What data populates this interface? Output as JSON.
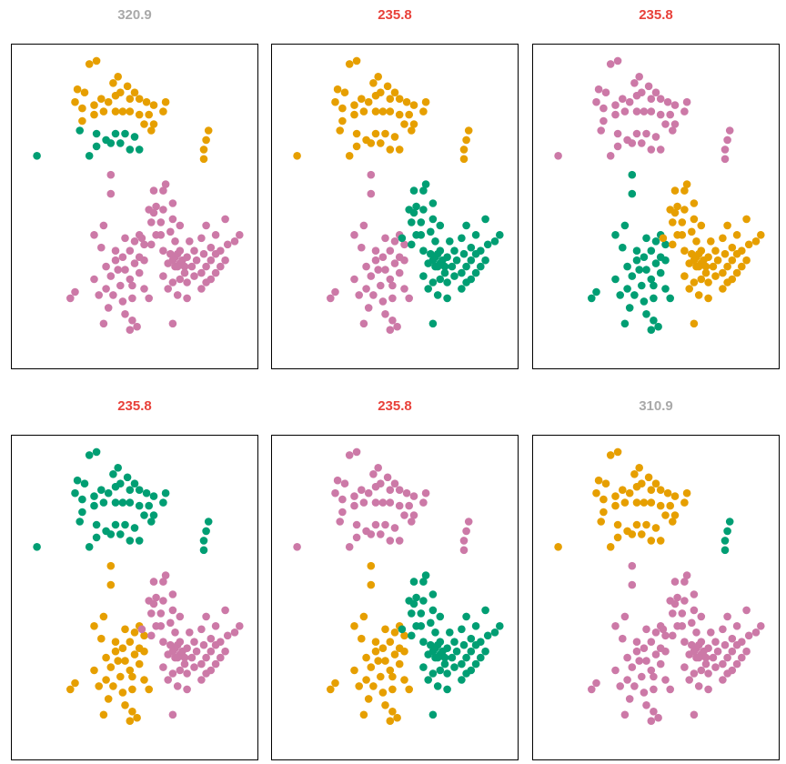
{
  "chart_data": {
    "type": "scatter",
    "colors": {
      "orange": "#E69F00",
      "green": "#009E73",
      "pink": "#CC79A7",
      "title_best": "#E8413A",
      "title_other": "#A9A9A9"
    },
    "xlim": [
      0,
      100
    ],
    "ylim": [
      0,
      100
    ],
    "panels": [
      {
        "title": "320.9",
        "title_color": "title_other",
        "groups": {
          "top_core": "orange",
          "top_lower": "green",
          "top_right": "orange",
          "far_left": "green",
          "left_blob": "pink",
          "right_blob": "pink"
        }
      },
      {
        "title": "235.8",
        "title_color": "title_best",
        "groups": {
          "top_core": "orange",
          "top_lower": "orange",
          "top_right": "orange",
          "far_left": "orange",
          "left_blob": "pink",
          "right_blob": "green"
        }
      },
      {
        "title": "235.8",
        "title_color": "title_best",
        "groups": {
          "top_core": "pink",
          "top_lower": "pink",
          "top_right": "pink",
          "far_left": "pink",
          "left_blob": "green",
          "right_blob": "orange"
        }
      },
      {
        "title": "235.8",
        "title_color": "title_best",
        "groups": {
          "top_core": "green",
          "top_lower": "green",
          "top_right": "green",
          "far_left": "green",
          "left_blob": "orange",
          "right_blob": "pink"
        }
      },
      {
        "title": "235.8",
        "title_color": "title_best",
        "groups": {
          "top_core": "pink",
          "top_lower": "pink",
          "top_right": "pink",
          "far_left": "pink",
          "left_blob": "orange",
          "right_blob": "green"
        }
      },
      {
        "title": "310.9",
        "title_color": "title_other",
        "groups": {
          "top_core": "orange",
          "top_lower": "orange",
          "top_right": "green",
          "far_left": "orange",
          "left_blob": "pink",
          "right_blob": "pink"
        }
      }
    ],
    "points": [
      {
        "g": "top_core",
        "x": 31,
        "y": 95
      },
      {
        "g": "top_core",
        "x": 34,
        "y": 96
      },
      {
        "g": "top_core",
        "x": 26,
        "y": 87
      },
      {
        "g": "top_core",
        "x": 29,
        "y": 86
      },
      {
        "g": "top_core",
        "x": 25,
        "y": 83
      },
      {
        "g": "top_core",
        "x": 28,
        "y": 81
      },
      {
        "g": "top_core",
        "x": 33,
        "y": 82
      },
      {
        "g": "top_core",
        "x": 36,
        "y": 84
      },
      {
        "g": "top_core",
        "x": 39,
        "y": 83
      },
      {
        "g": "top_core",
        "x": 42,
        "y": 85
      },
      {
        "g": "top_core",
        "x": 41,
        "y": 89
      },
      {
        "g": "top_core",
        "x": 43,
        "y": 91
      },
      {
        "g": "top_core",
        "x": 47,
        "y": 88
      },
      {
        "g": "top_core",
        "x": 50,
        "y": 86
      },
      {
        "g": "top_core",
        "x": 52,
        "y": 84
      },
      {
        "g": "top_core",
        "x": 55,
        "y": 83
      },
      {
        "g": "top_core",
        "x": 58,
        "y": 82
      },
      {
        "g": "top_core",
        "x": 63,
        "y": 83
      },
      {
        "g": "top_core",
        "x": 62,
        "y": 80
      },
      {
        "g": "top_core",
        "x": 56,
        "y": 79
      },
      {
        "g": "top_core",
        "x": 52,
        "y": 79
      },
      {
        "g": "top_core",
        "x": 48,
        "y": 80
      },
      {
        "g": "top_core",
        "x": 45,
        "y": 80
      },
      {
        "g": "top_core",
        "x": 42,
        "y": 80
      },
      {
        "g": "top_core",
        "x": 37,
        "y": 80
      },
      {
        "g": "top_core",
        "x": 33,
        "y": 79
      },
      {
        "g": "top_core",
        "x": 28,
        "y": 77
      },
      {
        "g": "top_core",
        "x": 54,
        "y": 76
      },
      {
        "g": "top_core",
        "x": 58,
        "y": 76
      },
      {
        "g": "top_core",
        "x": 57,
        "y": 74
      },
      {
        "g": "top_core",
        "x": 44,
        "y": 86
      },
      {
        "g": "top_core",
        "x": 48,
        "y": 84
      },
      {
        "g": "top_lower",
        "x": 27,
        "y": 74
      },
      {
        "g": "top_lower",
        "x": 34,
        "y": 73
      },
      {
        "g": "top_lower",
        "x": 38,
        "y": 71
      },
      {
        "g": "top_lower",
        "x": 42,
        "y": 73
      },
      {
        "g": "top_lower",
        "x": 46,
        "y": 73
      },
      {
        "g": "top_lower",
        "x": 50,
        "y": 72
      },
      {
        "g": "top_lower",
        "x": 44,
        "y": 70
      },
      {
        "g": "top_lower",
        "x": 34,
        "y": 69
      },
      {
        "g": "top_lower",
        "x": 31,
        "y": 66
      },
      {
        "g": "top_lower",
        "x": 52,
        "y": 68
      },
      {
        "g": "top_lower",
        "x": 40,
        "y": 70
      },
      {
        "g": "top_lower",
        "x": 48,
        "y": 68
      },
      {
        "g": "top_right",
        "x": 81,
        "y": 74
      },
      {
        "g": "top_right",
        "x": 80,
        "y": 71
      },
      {
        "g": "top_right",
        "x": 79,
        "y": 68
      },
      {
        "g": "top_right",
        "x": 79,
        "y": 65
      },
      {
        "g": "far_left",
        "x": 9,
        "y": 66
      },
      {
        "g": "left_blob",
        "x": 40,
        "y": 60
      },
      {
        "g": "left_blob",
        "x": 40,
        "y": 54
      },
      {
        "g": "left_blob",
        "x": 37,
        "y": 44
      },
      {
        "g": "left_blob",
        "x": 33,
        "y": 41
      },
      {
        "g": "left_blob",
        "x": 36,
        "y": 37
      },
      {
        "g": "left_blob",
        "x": 42,
        "y": 36
      },
      {
        "g": "left_blob",
        "x": 46,
        "y": 40
      },
      {
        "g": "left_blob",
        "x": 50,
        "y": 39
      },
      {
        "g": "left_blob",
        "x": 52,
        "y": 41
      },
      {
        "g": "left_blob",
        "x": 54,
        "y": 38
      },
      {
        "g": "left_blob",
        "x": 48,
        "y": 36
      },
      {
        "g": "left_blob",
        "x": 45,
        "y": 34
      },
      {
        "g": "left_blob",
        "x": 42,
        "y": 33
      },
      {
        "g": "left_blob",
        "x": 38,
        "y": 31
      },
      {
        "g": "left_blob",
        "x": 40,
        "y": 28
      },
      {
        "g": "left_blob",
        "x": 43,
        "y": 30
      },
      {
        "g": "left_blob",
        "x": 46,
        "y": 30
      },
      {
        "g": "left_blob",
        "x": 50,
        "y": 32
      },
      {
        "g": "left_blob",
        "x": 54,
        "y": 33
      },
      {
        "g": "left_blob",
        "x": 52,
        "y": 29
      },
      {
        "g": "left_blob",
        "x": 48,
        "y": 27
      },
      {
        "g": "left_blob",
        "x": 44,
        "y": 25
      },
      {
        "g": "left_blob",
        "x": 41,
        "y": 22
      },
      {
        "g": "left_blob",
        "x": 45,
        "y": 20
      },
      {
        "g": "left_blob",
        "x": 49,
        "y": 21
      },
      {
        "g": "left_blob",
        "x": 46,
        "y": 16
      },
      {
        "g": "left_blob",
        "x": 49,
        "y": 14
      },
      {
        "g": "left_blob",
        "x": 48,
        "y": 11
      },
      {
        "g": "left_blob",
        "x": 51,
        "y": 12
      },
      {
        "g": "left_blob",
        "x": 37,
        "y": 13
      },
      {
        "g": "left_blob",
        "x": 39,
        "y": 18
      },
      {
        "g": "left_blob",
        "x": 35,
        "y": 22
      },
      {
        "g": "left_blob",
        "x": 25,
        "y": 23
      },
      {
        "g": "left_blob",
        "x": 23,
        "y": 21
      },
      {
        "g": "left_blob",
        "x": 54,
        "y": 24
      },
      {
        "g": "left_blob",
        "x": 56,
        "y": 21
      },
      {
        "g": "left_blob",
        "x": 33,
        "y": 27
      },
      {
        "g": "left_blob",
        "x": 38,
        "y": 24
      },
      {
        "g": "left_blob",
        "x": 49,
        "y": 25
      },
      {
        "g": "left_blob",
        "x": 52,
        "y": 34
      },
      {
        "g": "right_blob",
        "x": 56,
        "y": 49
      },
      {
        "g": "right_blob",
        "x": 59,
        "y": 50
      },
      {
        "g": "right_blob",
        "x": 58,
        "y": 48
      },
      {
        "g": "right_blob",
        "x": 62,
        "y": 49
      },
      {
        "g": "right_blob",
        "x": 57,
        "y": 45
      },
      {
        "g": "right_blob",
        "x": 61,
        "y": 45
      },
      {
        "g": "right_blob",
        "x": 58,
        "y": 55
      },
      {
        "g": "right_blob",
        "x": 62,
        "y": 55
      },
      {
        "g": "right_blob",
        "x": 66,
        "y": 51
      },
      {
        "g": "right_blob",
        "x": 66,
        "y": 46
      },
      {
        "g": "right_blob",
        "x": 69,
        "y": 44
      },
      {
        "g": "right_blob",
        "x": 65,
        "y": 42
      },
      {
        "g": "right_blob",
        "x": 61,
        "y": 41
      },
      {
        "g": "right_blob",
        "x": 57,
        "y": 38
      },
      {
        "g": "right_blob",
        "x": 62,
        "y": 36
      },
      {
        "g": "right_blob",
        "x": 65,
        "y": 35
      },
      {
        "g": "right_blob",
        "x": 67,
        "y": 34
      },
      {
        "g": "right_blob",
        "x": 69,
        "y": 32
      },
      {
        "g": "right_blob",
        "x": 67,
        "y": 31
      },
      {
        "g": "right_blob",
        "x": 64,
        "y": 32
      },
      {
        "g": "right_blob",
        "x": 71,
        "y": 31
      },
      {
        "g": "right_blob",
        "x": 74,
        "y": 31
      },
      {
        "g": "right_blob",
        "x": 72,
        "y": 34
      },
      {
        "g": "right_blob",
        "x": 76,
        "y": 33
      },
      {
        "g": "right_blob",
        "x": 73,
        "y": 39
      },
      {
        "g": "right_blob",
        "x": 75,
        "y": 36
      },
      {
        "g": "right_blob",
        "x": 79,
        "y": 35
      },
      {
        "g": "right_blob",
        "x": 82,
        "y": 33
      },
      {
        "g": "right_blob",
        "x": 84,
        "y": 35
      },
      {
        "g": "right_blob",
        "x": 80,
        "y": 31
      },
      {
        "g": "right_blob",
        "x": 78,
        "y": 29
      },
      {
        "g": "right_blob",
        "x": 75,
        "y": 28
      },
      {
        "g": "right_blob",
        "x": 72,
        "y": 26
      },
      {
        "g": "right_blob",
        "x": 69,
        "y": 27
      },
      {
        "g": "right_blob",
        "x": 66,
        "y": 26
      },
      {
        "g": "right_blob",
        "x": 62,
        "y": 28
      },
      {
        "g": "right_blob",
        "x": 64,
        "y": 24
      },
      {
        "g": "right_blob",
        "x": 68,
        "y": 22
      },
      {
        "g": "right_blob",
        "x": 72,
        "y": 21
      },
      {
        "g": "right_blob",
        "x": 78,
        "y": 24
      },
      {
        "g": "right_blob",
        "x": 80,
        "y": 26
      },
      {
        "g": "right_blob",
        "x": 82,
        "y": 27
      },
      {
        "g": "right_blob",
        "x": 84,
        "y": 29
      },
      {
        "g": "right_blob",
        "x": 86,
        "y": 31
      },
      {
        "g": "right_blob",
        "x": 88,
        "y": 33
      },
      {
        "g": "right_blob",
        "x": 89,
        "y": 38
      },
      {
        "g": "right_blob",
        "x": 92,
        "y": 39
      },
      {
        "g": "right_blob",
        "x": 94,
        "y": 41
      },
      {
        "g": "right_blob",
        "x": 88,
        "y": 46
      },
      {
        "g": "right_blob",
        "x": 84,
        "y": 41
      },
      {
        "g": "right_blob",
        "x": 80,
        "y": 44
      },
      {
        "g": "right_blob",
        "x": 78,
        "y": 40
      },
      {
        "g": "right_blob",
        "x": 82,
        "y": 37
      },
      {
        "g": "right_blob",
        "x": 86,
        "y": 36
      },
      {
        "g": "right_blob",
        "x": 67,
        "y": 39
      },
      {
        "g": "right_blob",
        "x": 59,
        "y": 41
      },
      {
        "g": "right_blob",
        "x": 66,
        "y": 13
      },
      {
        "g": "right_blob",
        "x": 63,
        "y": 57
      },
      {
        "g": "right_blob",
        "x": 53,
        "y": 40
      },
      {
        "g": "right_blob",
        "x": 68,
        "y": 35
      },
      {
        "g": "right_blob",
        "x": 70,
        "y": 33
      },
      {
        "g": "right_blob",
        "x": 66,
        "y": 33
      },
      {
        "g": "right_blob",
        "x": 68,
        "y": 31
      },
      {
        "g": "right_blob",
        "x": 69,
        "y": 36
      },
      {
        "g": "right_blob",
        "x": 71,
        "y": 29
      }
    ]
  }
}
